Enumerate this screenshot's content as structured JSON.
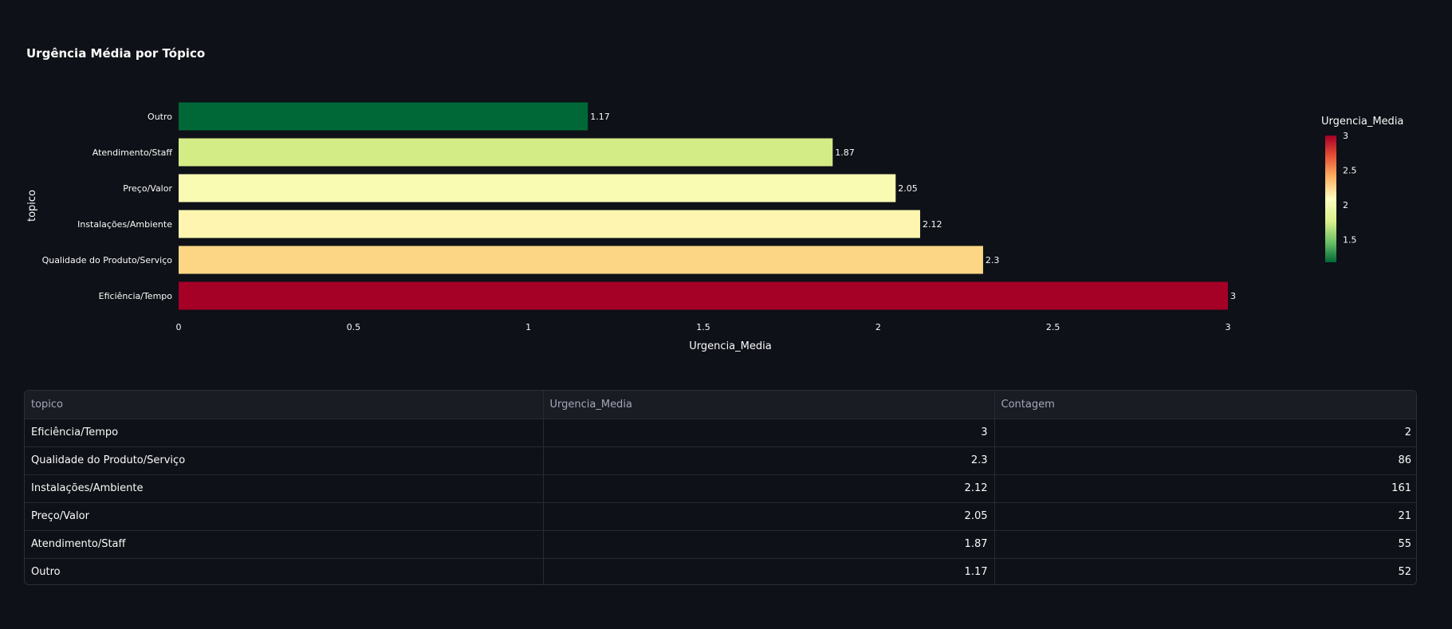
{
  "chart_data": {
    "type": "bar",
    "orientation": "horizontal",
    "title": "Urgência Média por Tópico",
    "xlabel": "Urgencia_Media",
    "ylabel": "topico",
    "xlim": [
      0,
      3
    ],
    "x_ticks": [
      "0",
      "0.5",
      "1",
      "1.5",
      "2",
      "2.5",
      "3"
    ],
    "grid": false,
    "colorscale": "RdYlGn (reversed)",
    "categories": [
      "Outro",
      "Atendimento/Staff",
      "Preço/Valor",
      "Instalações/Ambiente",
      "Qualidade do Produto/Serviço",
      "Eficiência/Tempo"
    ],
    "values": [
      1.17,
      1.87,
      2.05,
      2.12,
      2.3,
      3
    ],
    "value_labels": [
      "1.17",
      "1.87",
      "2.05",
      "2.12",
      "2.3",
      "3"
    ],
    "bar_colors": [
      "#006837",
      "#d4ec86",
      "#f9fbb3",
      "#fef6b0",
      "#fdd685",
      "#a50026"
    ],
    "colorbar": {
      "title": "Urgencia_Media",
      "ticks": [
        "3",
        "2.5",
        "2",
        "1.5"
      ],
      "range": [
        1.17,
        3
      ]
    }
  },
  "table": {
    "headers": [
      "topico",
      "Urgencia_Media",
      "Contagem"
    ],
    "rows": [
      [
        "Eficiência/Tempo",
        "3",
        "2"
      ],
      [
        "Qualidade do Produto/Serviço",
        "2.3",
        "86"
      ],
      [
        "Instalações/Ambiente",
        "2.12",
        "161"
      ],
      [
        "Preço/Valor",
        "2.05",
        "21"
      ],
      [
        "Atendimento/Staff",
        "1.87",
        "55"
      ],
      [
        "Outro",
        "1.17",
        "52"
      ]
    ]
  }
}
